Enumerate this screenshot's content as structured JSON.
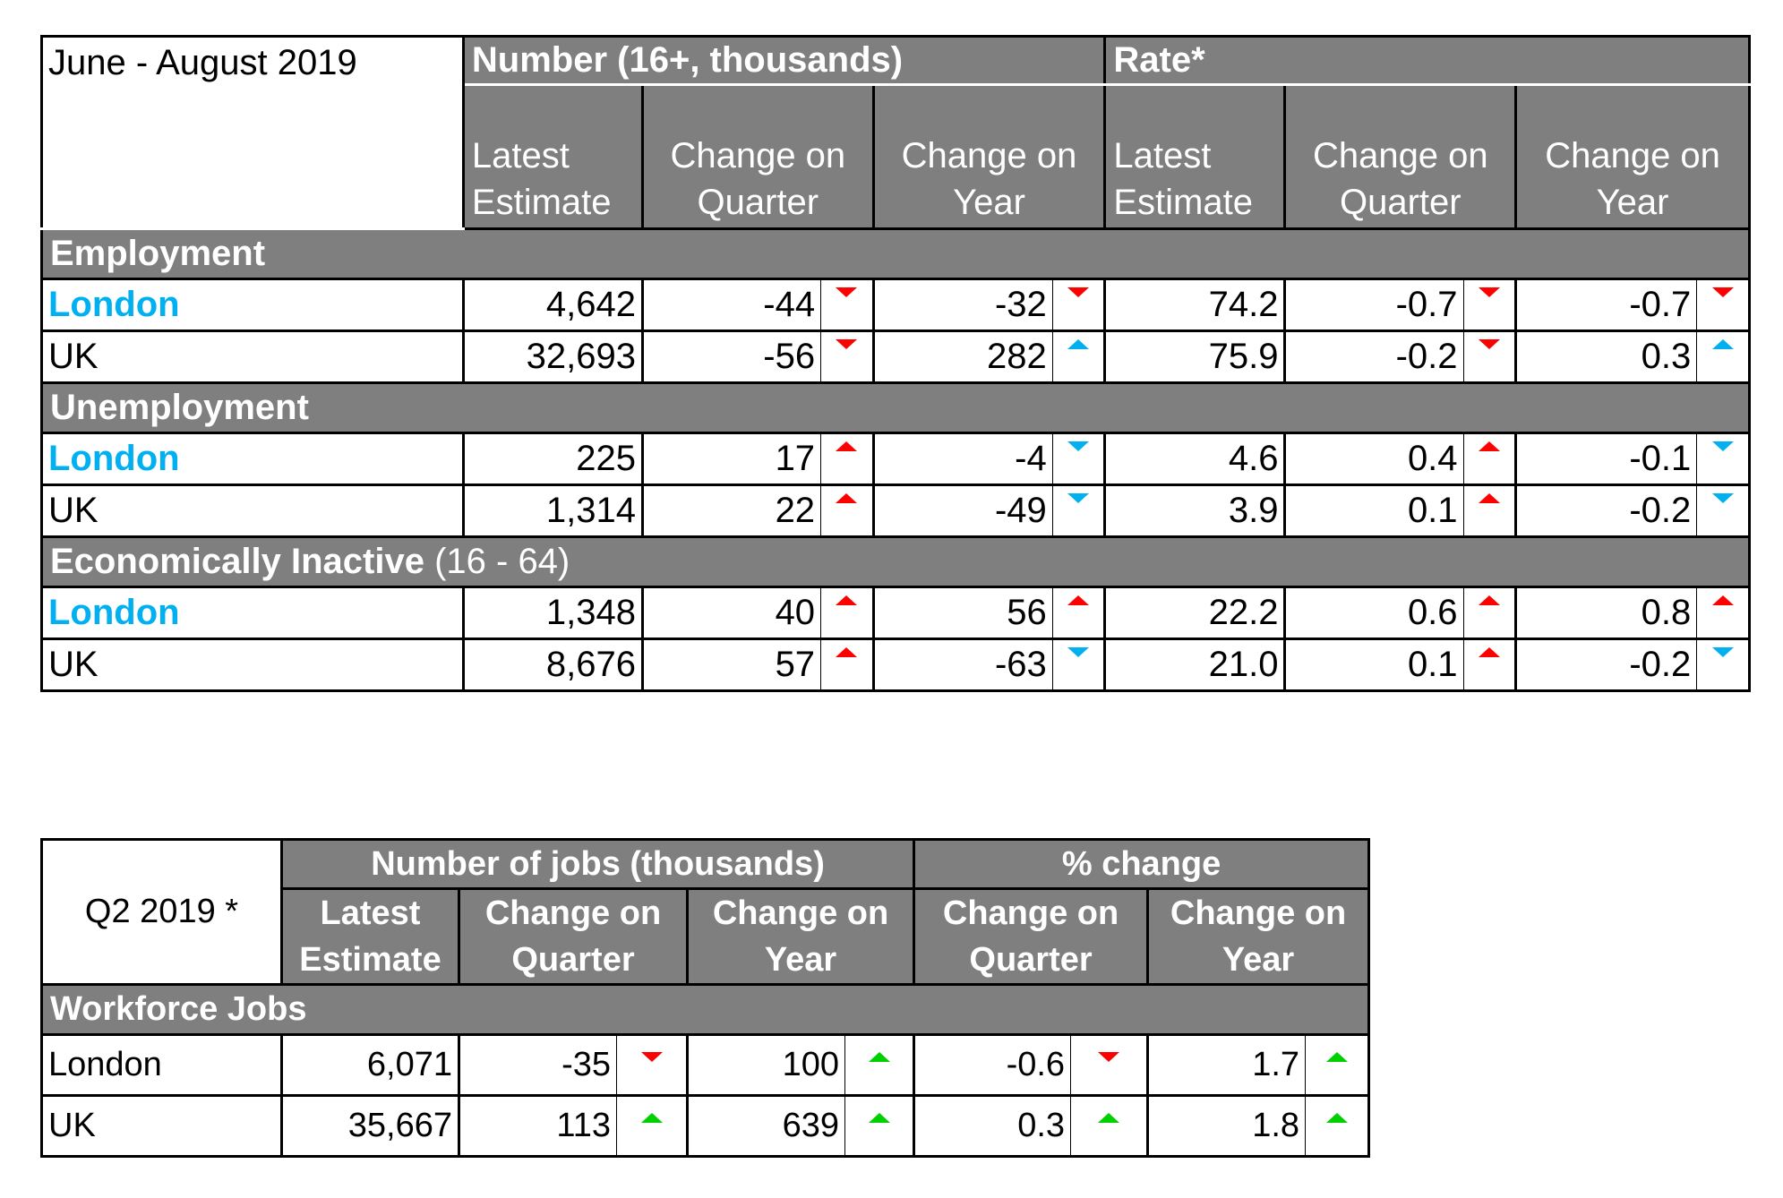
{
  "table1": {
    "period": "June - August 2019",
    "group_number": "Number (16+, thousands)",
    "group_rate": "Rate*",
    "col_latest_1": "Latest Estimate",
    "col_quarter_1": "Change on Quarter",
    "col_year_1": "Change on Year",
    "col_latest_2": "Latest Estimate",
    "col_quarter_2": "Change on Quarter",
    "col_year_2": "Change on Year",
    "sections": [
      {
        "title": "Employment",
        "suffix": "",
        "rows": [
          {
            "label": "London",
            "num_latest": "4,642",
            "num_q": "-44",
            "num_q_dir": "down",
            "num_y": "-32",
            "num_y_dir": "down",
            "rate_latest": "74.2",
            "rate_q": "-0.7",
            "rate_q_dir": "down",
            "rate_y": "-0.7",
            "rate_y_dir": "down"
          },
          {
            "label": "UK",
            "num_latest": "32,693",
            "num_q": "-56",
            "num_q_dir": "down",
            "num_y": "282",
            "num_y_dir": "up",
            "rate_latest": "75.9",
            "rate_q": "-0.2",
            "rate_q_dir": "down",
            "rate_y": "0.3",
            "rate_y_dir": "up"
          }
        ]
      },
      {
        "title": "Unemployment",
        "suffix": "",
        "rows": [
          {
            "label": "London",
            "num_latest": "225",
            "num_q": "17",
            "num_q_dir": "up",
            "num_y": "-4",
            "num_y_dir": "down",
            "rate_latest": "4.6",
            "rate_q": "0.4",
            "rate_q_dir": "up",
            "rate_y": "-0.1",
            "rate_y_dir": "down"
          },
          {
            "label": "UK",
            "num_latest": "1,314",
            "num_q": "22",
            "num_q_dir": "up",
            "num_y": "-49",
            "num_y_dir": "down",
            "rate_latest": "3.9",
            "rate_q": "0.1",
            "rate_q_dir": "up",
            "rate_y": "-0.2",
            "rate_y_dir": "down"
          }
        ]
      },
      {
        "title": "Economically Inactive",
        "suffix": "(16 - 64)",
        "rows": [
          {
            "label": "London",
            "num_latest": "1,348",
            "num_q": "40",
            "num_q_dir": "up",
            "num_y": "56",
            "num_y_dir": "up",
            "rate_latest": "22.2",
            "rate_q": "0.6",
            "rate_q_dir": "up",
            "rate_y": "0.8",
            "rate_y_dir": "up"
          },
          {
            "label": "UK",
            "num_latest": "8,676",
            "num_q": "57",
            "num_q_dir": "up",
            "num_y": "-63",
            "num_y_dir": "down",
            "rate_latest": "21.0",
            "rate_q": "0.1",
            "rate_q_dir": "up",
            "rate_y": "-0.2",
            "rate_y_dir": "down"
          }
        ]
      }
    ],
    "arrow_colors": {
      "unfavourable": "#ff0000",
      "favourable": "#00b0f0"
    }
  },
  "table2": {
    "period": "Q2 2019 *",
    "group_number": "Number of jobs (thousands)",
    "group_pct": "% change",
    "col_latest": "Latest Estimate",
    "col_quarter_1": "Change on Quarter",
    "col_year_1": "Change on Year",
    "col_quarter_2": "Change on Quarter",
    "col_year_2": "Change on Year",
    "section": "Workforce Jobs",
    "rows": [
      {
        "label": "London",
        "latest": "6,071",
        "q": "-35",
        "q_dir": "down",
        "y": "100",
        "y_dir": "up",
        "pq": "-0.6",
        "pq_dir": "down",
        "py": "1.7",
        "py_dir": "up"
      },
      {
        "label": "UK",
        "latest": "35,667",
        "q": "113",
        "q_dir": "up",
        "y": "639",
        "y_dir": "up",
        "pq": "0.3",
        "pq_dir": "up",
        "py": "1.8",
        "py_dir": "up"
      }
    ],
    "arrow_colors": {
      "down": "#ff0000",
      "up": "#00d000"
    }
  }
}
